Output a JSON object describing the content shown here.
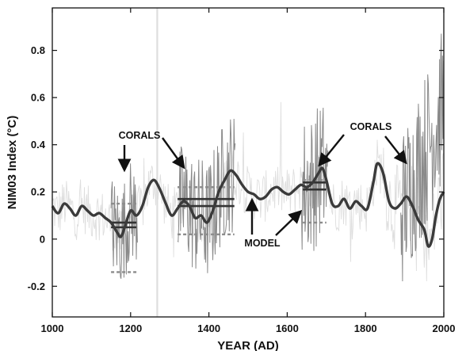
{
  "chart_data": {
    "type": "line",
    "xlabel": "YEAR (AD)",
    "ylabel": "NIM03 Index (°C)",
    "xlim": [
      1000,
      2000
    ],
    "ylim": [
      -0.33,
      0.98
    ],
    "x_ticks": [
      {
        "value": 1000,
        "label": "1000"
      },
      {
        "value": 1200,
        "label": "1200"
      },
      {
        "value": 1400,
        "label": "1400"
      },
      {
        "value": 1600,
        "label": "1600"
      },
      {
        "value": 1800,
        "label": "1800"
      },
      {
        "value": 2000,
        "label": "2000"
      }
    ],
    "y_ticks": [
      {
        "value": -0.2,
        "label": "-0.2"
      },
      {
        "value": 0,
        "label": "0"
      },
      {
        "value": 0.2,
        "label": "0.2"
      },
      {
        "value": 0.4,
        "label": "0.4"
      },
      {
        "value": 0.6,
        "label": "0.6"
      },
      {
        "value": 0.8,
        "label": "0.8"
      }
    ],
    "grid": false,
    "colors": {
      "model": "#3a3a3a",
      "coral_series": "#8a8a8a",
      "background_series": "#dedede",
      "window_mean": "#333333",
      "window_range": "#8c8c8c"
    },
    "series": [
      {
        "role": "model",
        "x": [
          1000,
          1015,
          1030,
          1045,
          1060,
          1075,
          1090,
          1105,
          1120,
          1135,
          1150,
          1165,
          1175,
          1185,
          1200,
          1215,
          1230,
          1245,
          1260,
          1275,
          1290,
          1305,
          1320,
          1335,
          1350,
          1365,
          1380,
          1395,
          1410,
          1425,
          1440,
          1455,
          1470,
          1485,
          1500,
          1515,
          1530,
          1545,
          1560,
          1575,
          1590,
          1605,
          1620,
          1635,
          1650,
          1665,
          1680,
          1690,
          1700,
          1715,
          1730,
          1745,
          1760,
          1775,
          1790,
          1805,
          1820,
          1830,
          1845,
          1860,
          1875,
          1890,
          1905,
          1920,
          1935,
          1950,
          1960,
          1970,
          1980,
          1990,
          2000
        ],
        "y": [
          0.14,
          0.11,
          0.15,
          0.13,
          0.1,
          0.14,
          0.12,
          0.1,
          0.11,
          0.09,
          0.07,
          0.03,
          0.01,
          0.05,
          0.12,
          0.1,
          0.14,
          0.22,
          0.25,
          0.21,
          0.15,
          0.1,
          0.13,
          0.16,
          0.14,
          0.09,
          0.1,
          0.07,
          0.12,
          0.2,
          0.25,
          0.29,
          0.27,
          0.23,
          0.2,
          0.19,
          0.17,
          0.18,
          0.21,
          0.22,
          0.2,
          0.19,
          0.21,
          0.23,
          0.22,
          0.24,
          0.28,
          0.3,
          0.25,
          0.15,
          0.14,
          0.17,
          0.13,
          0.16,
          0.14,
          0.13,
          0.24,
          0.32,
          0.28,
          0.16,
          0.13,
          0.15,
          0.18,
          0.14,
          0.08,
          0.04,
          -0.03,
          0.0,
          0.1,
          0.17,
          0.2
        ]
      }
    ],
    "coral_windows": [
      {
        "x0": 1150,
        "x1": 1215,
        "means": [
          0.07,
          0.05
        ],
        "range": [
          0.15,
          -0.14
        ]
      },
      {
        "x0": 1320,
        "x1": 1465,
        "means": [
          0.17,
          0.14
        ],
        "range": [
          0.22,
          0.02
        ]
      },
      {
        "x0": 1640,
        "x1": 1700,
        "means": [
          0.24,
          0.21
        ],
        "range": [
          0.25,
          0.07
        ]
      }
    ],
    "annotations": [
      {
        "text": "CORALS"
      },
      {
        "text": "CORALS"
      },
      {
        "text": "MODEL"
      }
    ]
  }
}
